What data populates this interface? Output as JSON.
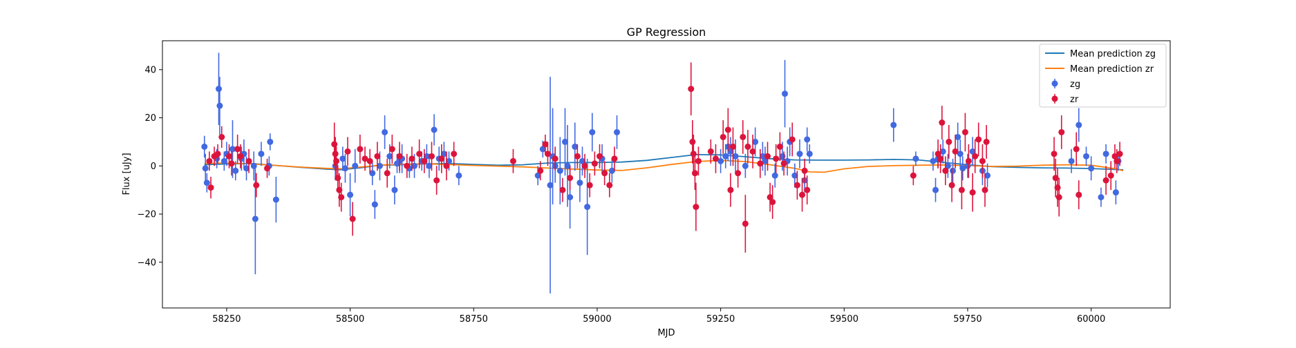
{
  "chart_data": {
    "type": "scatter",
    "title": "GP Regression",
    "xlabel": "MJD",
    "ylabel": "Flux [uJy]",
    "xlim": [
      58120,
      60160
    ],
    "ylim": [
      -59,
      52
    ],
    "xticks": [
      58250,
      58500,
      58750,
      59000,
      59250,
      59500,
      59750,
      60000
    ],
    "yticks": [
      -40,
      -20,
      0,
      20,
      40
    ],
    "grid": false,
    "legend_position": "top-right",
    "lines": [
      {
        "name": "Mean prediction zg",
        "color": "#1f77b4",
        "x": [
          58205,
          58250,
          58300,
          58350,
          58400,
          58450,
          58480,
          58520,
          58560,
          58600,
          58650,
          58700,
          58750,
          58800,
          58850,
          58900,
          58950,
          59000,
          59050,
          59100,
          59150,
          59200,
          59250,
          59300,
          59350,
          59400,
          59450,
          59500,
          59550,
          59600,
          59650,
          59700,
          59750,
          59800,
          59850,
          59900,
          59950,
          60000,
          60050,
          60065
        ],
        "y": [
          0.5,
          0.8,
          1.0,
          0.2,
          -0.6,
          -1.3,
          -1.6,
          -0.8,
          0.3,
          0.5,
          0.8,
          1.0,
          0.6,
          0.3,
          0.5,
          1.2,
          1.4,
          1.4,
          1.6,
          2.3,
          3.5,
          4.7,
          4.6,
          3.8,
          3.0,
          2.5,
          2.4,
          2.4,
          2.5,
          2.7,
          2.5,
          1.5,
          0.5,
          -0.3,
          -0.6,
          -0.8,
          -0.9,
          -1.1,
          -1.5,
          -1.6
        ]
      },
      {
        "name": "Mean prediction zr",
        "color": "#ff7f0e",
        "x": [
          58205,
          58250,
          58300,
          58350,
          58400,
          58450,
          58480,
          58520,
          58560,
          58600,
          58650,
          58700,
          58750,
          58800,
          58850,
          58900,
          58950,
          59000,
          59050,
          59100,
          59150,
          59200,
          59250,
          59300,
          59350,
          59400,
          59430,
          59460,
          59500,
          59550,
          59600,
          59650,
          59700,
          59750,
          59800,
          59850,
          59900,
          59950,
          60000,
          60050,
          60065
        ],
        "y": [
          1.0,
          1.2,
          0.8,
          0.2,
          -0.5,
          -1.0,
          -1.2,
          -0.5,
          0.3,
          0.7,
          0.9,
          0.6,
          0.2,
          -0.1,
          -0.4,
          -0.9,
          -1.3,
          -1.7,
          -1.9,
          -0.8,
          0.6,
          1.8,
          2.3,
          1.8,
          0.5,
          -1.0,
          -2.5,
          -2.6,
          -1.2,
          -0.2,
          0.1,
          0.3,
          0.4,
          0.1,
          -0.2,
          -0.1,
          0.3,
          0.5,
          0.3,
          -1.2,
          -2.0
        ]
      }
    ],
    "series": [
      {
        "name": "zg",
        "color": "#4169e1",
        "x": [
          58205,
          58207,
          58210,
          58230,
          58234,
          58236,
          58245,
          58250,
          58262,
          58268,
          58280,
          58285,
          58290,
          58305,
          58308,
          58320,
          58336,
          58338,
          58350,
          58470,
          58485,
          58490,
          58500,
          58510,
          58545,
          58550,
          58560,
          58570,
          58580,
          58590,
          58595,
          58600,
          58605,
          58620,
          58630,
          58645,
          58655,
          58660,
          58670,
          58680,
          58690,
          58700,
          58720,
          58880,
          58890,
          58905,
          58910,
          58915,
          58925,
          58935,
          58940,
          58945,
          58955,
          58965,
          58970,
          58980,
          58990,
          59010,
          59030,
          59040,
          59250,
          59260,
          59265,
          59270,
          59280,
          59300,
          59320,
          59335,
          59340,
          59360,
          59375,
          59380,
          59385,
          59390,
          59400,
          59410,
          59420,
          59425,
          59430,
          59600,
          59645,
          59680,
          59685,
          59690,
          59700,
          59710,
          59720,
          59730,
          59735,
          59740,
          59750,
          59760,
          59780,
          59790,
          59960,
          59975,
          59990,
          60000,
          60020,
          60030,
          60050,
          60055
        ],
        "y": [
          8,
          -1,
          -7,
          3,
          32,
          25,
          2,
          5,
          7,
          -2,
          3,
          5,
          -1,
          0,
          -22,
          5,
          0,
          10,
          -14,
          0,
          3,
          -1,
          -12,
          0,
          -3,
          -16,
          0,
          14,
          4,
          -10,
          1,
          2,
          3,
          -1,
          0,
          2,
          4,
          0,
          15,
          3,
          5,
          2,
          -4,
          -4,
          7,
          -8,
          4,
          0,
          -2,
          10,
          0,
          -13,
          8,
          -7,
          2,
          -17,
          14,
          3,
          -2,
          14,
          2,
          4,
          8,
          6,
          4,
          0,
          10,
          4,
          2,
          -4,
          4,
          30,
          2,
          10,
          -4,
          5,
          -6,
          11,
          5,
          17,
          3,
          2,
          -10,
          3,
          6,
          0,
          -2,
          12,
          5,
          -1,
          0,
          6,
          -2,
          -4,
          2,
          17,
          4,
          -1,
          -13,
          5,
          -11,
          2
        ],
        "yerr": [
          4.5,
          6,
          4,
          4,
          15,
          12,
          4,
          5,
          12,
          4,
          5,
          6,
          5,
          6,
          23,
          5,
          4,
          3.5,
          9.5,
          6,
          5,
          6,
          9,
          7,
          5,
          6,
          6,
          7,
          5,
          6,
          4,
          5,
          6,
          4,
          5,
          4,
          5,
          5,
          6.5,
          5,
          5,
          4,
          4,
          4,
          3.5,
          45,
          20,
          7,
          14,
          14,
          17,
          13,
          10,
          8,
          6,
          20,
          8,
          6,
          5,
          7,
          5,
          5,
          6,
          6,
          7,
          5,
          6,
          6,
          6,
          5,
          6,
          14,
          6,
          6,
          5,
          6,
          5,
          5,
          4,
          7,
          3,
          4,
          5,
          4,
          5,
          5,
          5,
          6,
          6,
          5,
          5,
          6,
          6,
          5,
          5,
          7,
          4,
          5,
          4,
          4,
          5,
          4
        ]
      },
      {
        "name": "zr",
        "color": "#dc143c",
        "x": [
          58215,
          58218,
          58225,
          58232,
          58240,
          58255,
          58260,
          58272,
          58278,
          58295,
          58310,
          58332,
          58468,
          58470,
          58472,
          58475,
          58478,
          58482,
          58495,
          58505,
          58520,
          58530,
          58540,
          58555,
          58575,
          58585,
          58600,
          58615,
          58625,
          58640,
          58650,
          58665,
          58675,
          58685,
          58695,
          58710,
          58830,
          58885,
          58895,
          58900,
          58915,
          58930,
          58945,
          58960,
          58975,
          58985,
          58995,
          59005,
          59015,
          59025,
          59035,
          59190,
          59193,
          59195,
          59198,
          59200,
          59205,
          59230,
          59240,
          59255,
          59265,
          59270,
          59275,
          59285,
          59295,
          59300,
          59305,
          59315,
          59330,
          59345,
          59350,
          59355,
          59362,
          59370,
          59378,
          59395,
          59405,
          59415,
          59420,
          59425,
          59640,
          59690,
          59695,
          59698,
          59705,
          59712,
          59718,
          59725,
          59738,
          59745,
          59752,
          59760,
          59765,
          59772,
          59780,
          59785,
          59788,
          59925,
          59928,
          59932,
          59935,
          59940,
          59970,
          59975,
          60030,
          60040,
          60048,
          60052,
          60058
        ],
        "y": [
          2,
          -9,
          4,
          5,
          12,
          4,
          1,
          7,
          4,
          2,
          -8,
          -1,
          9,
          5,
          2,
          -5,
          -10,
          -13,
          6,
          -22,
          7,
          3,
          2,
          4,
          -3,
          7,
          4,
          0,
          3,
          5,
          2,
          4,
          -6,
          3,
          0,
          5,
          2,
          -2,
          9,
          5,
          3,
          -10,
          -5,
          4,
          0,
          -8,
          1,
          4,
          -3,
          -8,
          3,
          32,
          10,
          5,
          -3,
          -17,
          2,
          6,
          3,
          12,
          15,
          -10,
          8,
          -3,
          12,
          -24,
          8,
          6,
          1,
          4,
          -13,
          -15,
          3,
          8,
          1,
          11,
          -8,
          -12,
          -2,
          -10,
          -4,
          5,
          3,
          18,
          -2,
          10,
          -8,
          6,
          -10,
          14,
          2,
          -11,
          4,
          11,
          2,
          -10,
          10,
          5,
          -5,
          -9,
          -13,
          14,
          7,
          -12,
          -6,
          -4,
          4,
          2,
          5
        ],
        "yerr": [
          4,
          4.5,
          4,
          4,
          4.5,
          5,
          5,
          6,
          5,
          5,
          5,
          4,
          9,
          7,
          6,
          5,
          7,
          6,
          6,
          7,
          6,
          5,
          5,
          6,
          6,
          6,
          6,
          5,
          5,
          6,
          5,
          6,
          6,
          6,
          6,
          5,
          5,
          4,
          4,
          5,
          5,
          5,
          5,
          5,
          5,
          5,
          5,
          5,
          5,
          5,
          5,
          11,
          9,
          8,
          7,
          10,
          6,
          5,
          6,
          7,
          9,
          7,
          8,
          6,
          7,
          12,
          7,
          7,
          6,
          6,
          6,
          7,
          6,
          6,
          5,
          7,
          6,
          7,
          5,
          6,
          4,
          6,
          6,
          7,
          6,
          7,
          7,
          7,
          8,
          8,
          7,
          8,
          7,
          7,
          7,
          7,
          7,
          7,
          8,
          8,
          8,
          7,
          7,
          6,
          6,
          6,
          5,
          5,
          5
        ]
      }
    ]
  }
}
